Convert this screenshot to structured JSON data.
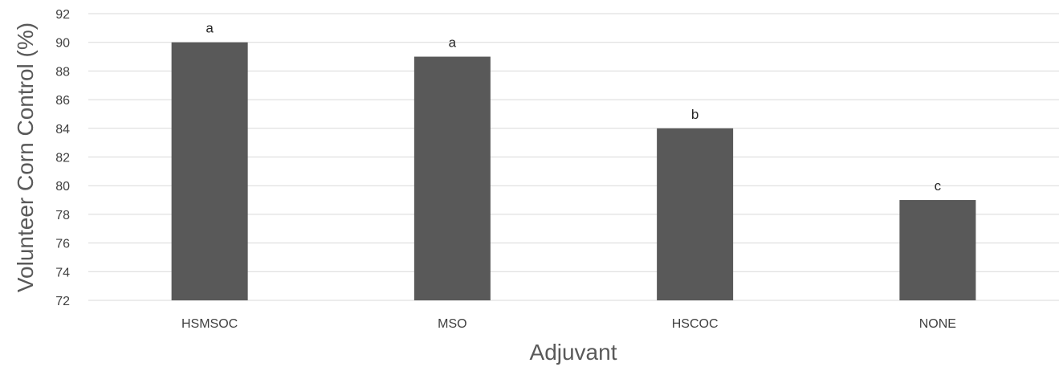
{
  "chart_data": {
    "type": "bar",
    "title": "",
    "xlabel": "Adjuvant",
    "ylabel": "Volunteer Corn Control (%)",
    "categories": [
      "HSMSOC",
      "MSO",
      "HSCOC",
      "NONE"
    ],
    "values": [
      90,
      89,
      84,
      79
    ],
    "data_labels": [
      "a",
      "a",
      "b",
      "c"
    ],
    "ylim": [
      72,
      92
    ],
    "yticks": [
      72,
      74,
      76,
      78,
      80,
      82,
      84,
      86,
      88,
      90,
      92
    ],
    "grid": true,
    "legend": "none",
    "colors": {
      "bar": "#595959",
      "grid": "#d9d9d9",
      "text": "#404040"
    }
  }
}
